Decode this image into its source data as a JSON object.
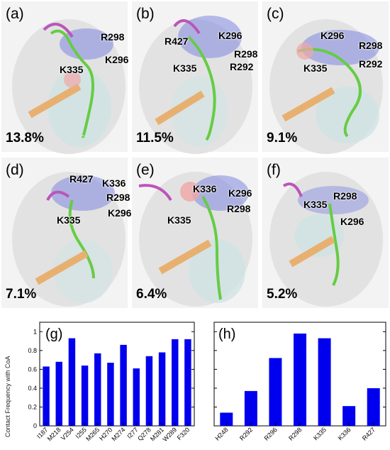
{
  "panels": [
    {
      "label": "(a)",
      "percent": "13.8%",
      "residues": [
        "R298",
        "K296",
        "K335"
      ]
    },
    {
      "label": "(b)",
      "percent": "11.5%",
      "residues": [
        "R427",
        "K296",
        "R298",
        "K335",
        "R292"
      ]
    },
    {
      "label": "(c)",
      "percent": "9.1%",
      "residues": [
        "K296",
        "R298",
        "K335",
        "R292"
      ]
    },
    {
      "label": "(d)",
      "percent": "7.1%",
      "residues": [
        "R427",
        "K336",
        "R298",
        "K335",
        "K296"
      ]
    },
    {
      "label": "(e)",
      "percent": "6.4%",
      "residues": [
        "K336",
        "K296",
        "R298",
        "K335"
      ]
    },
    {
      "label": "(f)",
      "percent": "5.2%",
      "residues": [
        "R298",
        "K335",
        "K296"
      ]
    }
  ],
  "chart_data": [
    {
      "type": "bar",
      "panel_label": "(g)",
      "ylabel": "Contact Frequency with CoA",
      "ylim": [
        0,
        1.1
      ],
      "yticks": [
        "0",
        "0.2",
        "0.4",
        "0.6",
        "0.8",
        "1"
      ],
      "categories": [
        "I187",
        "M218",
        "V254",
        "I255",
        "M265",
        "H270",
        "M274",
        "I277",
        "Q278",
        "M281",
        "W289",
        "F320"
      ],
      "values": [
        0.63,
        0.68,
        0.93,
        0.64,
        0.77,
        0.67,
        0.86,
        0.61,
        0.74,
        0.78,
        0.92,
        0.92
      ],
      "bar_color": "#0000ee"
    },
    {
      "type": "bar",
      "panel_label": "(h)",
      "ylim": [
        0,
        1.1
      ],
      "categories": [
        "H248",
        "R292",
        "R296",
        "R298",
        "K335",
        "K336",
        "R427"
      ],
      "values": [
        0.14,
        0.37,
        0.72,
        0.98,
        0.93,
        0.21,
        0.4
      ],
      "bar_color": "#0000ee"
    }
  ]
}
